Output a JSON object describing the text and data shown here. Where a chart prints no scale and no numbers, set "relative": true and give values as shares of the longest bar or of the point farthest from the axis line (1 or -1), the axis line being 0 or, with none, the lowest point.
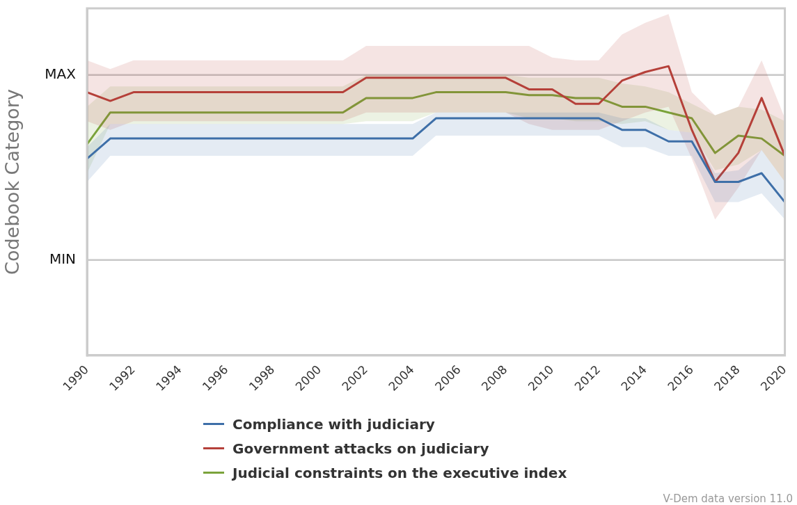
{
  "chart_data": {
    "type": "line",
    "ylabel": "Codebook Category",
    "relative": true,
    "x": [
      1990,
      1991,
      1992,
      1993,
      1994,
      1995,
      1996,
      1997,
      1998,
      1999,
      2000,
      2001,
      2002,
      2003,
      2004,
      2005,
      2006,
      2007,
      2008,
      2009,
      2010,
      2011,
      2012,
      2013,
      2014,
      2015,
      2016,
      2017,
      2018,
      2019,
      2020
    ],
    "series": [
      {
        "name": "Compliance with judiciary",
        "color": "#3e6fa8",
        "values": [
          0.68,
          0.75,
          0.75,
          0.75,
          0.75,
          0.75,
          0.75,
          0.75,
          0.75,
          0.75,
          0.75,
          0.75,
          0.75,
          0.75,
          0.75,
          0.82,
          0.82,
          0.82,
          0.82,
          0.82,
          0.82,
          0.82,
          0.82,
          0.78,
          0.78,
          0.74,
          0.74,
          0.6,
          0.6,
          0.63,
          0.53
        ],
        "lower": [
          0.6,
          0.69,
          0.69,
          0.69,
          0.69,
          0.69,
          0.69,
          0.69,
          0.69,
          0.69,
          0.69,
          0.69,
          0.69,
          0.69,
          0.69,
          0.76,
          0.76,
          0.76,
          0.76,
          0.76,
          0.76,
          0.76,
          0.76,
          0.72,
          0.72,
          0.69,
          0.69,
          0.53,
          0.53,
          0.56,
          0.47
        ],
        "upper": [
          0.72,
          0.8,
          0.8,
          0.8,
          0.8,
          0.8,
          0.8,
          0.8,
          0.8,
          0.8,
          0.8,
          0.8,
          0.8,
          0.8,
          0.8,
          0.84,
          0.84,
          0.84,
          0.84,
          0.84,
          0.84,
          0.84,
          0.84,
          0.82,
          0.82,
          0.78,
          0.77,
          0.63,
          0.64,
          0.71,
          0.6
        ]
      },
      {
        "name": "Government attacks on judiciary",
        "color": "#b5403a",
        "values": [
          0.91,
          0.88,
          0.91,
          0.91,
          0.91,
          0.91,
          0.91,
          0.91,
          0.91,
          0.91,
          0.91,
          0.91,
          0.96,
          0.96,
          0.96,
          0.96,
          0.96,
          0.96,
          0.96,
          0.92,
          0.92,
          0.87,
          0.87,
          0.95,
          0.98,
          1.0,
          0.78,
          0.6,
          0.7,
          0.89,
          0.69
        ],
        "lower": [
          0.81,
          0.78,
          0.81,
          0.81,
          0.81,
          0.81,
          0.81,
          0.81,
          0.81,
          0.81,
          0.81,
          0.81,
          0.84,
          0.84,
          0.84,
          0.84,
          0.84,
          0.84,
          0.84,
          0.8,
          0.78,
          0.78,
          0.78,
          0.81,
          0.84,
          0.86,
          0.68,
          0.47,
          0.58,
          0.71,
          0.6
        ],
        "upper": [
          1.02,
          0.99,
          1.02,
          1.02,
          1.02,
          1.02,
          1.02,
          1.02,
          1.02,
          1.02,
          1.02,
          1.02,
          1.07,
          1.07,
          1.07,
          1.07,
          1.07,
          1.07,
          1.07,
          1.07,
          1.03,
          1.02,
          1.02,
          1.11,
          1.15,
          1.18,
          0.91,
          0.83,
          0.86,
          1.02,
          0.82
        ]
      },
      {
        "name": "Judicial constraints on the executive index",
        "color": "#7ba33b",
        "values": [
          0.73,
          0.84,
          0.84,
          0.84,
          0.84,
          0.84,
          0.84,
          0.84,
          0.84,
          0.84,
          0.84,
          0.84,
          0.89,
          0.89,
          0.89,
          0.91,
          0.91,
          0.91,
          0.91,
          0.9,
          0.9,
          0.89,
          0.89,
          0.86,
          0.86,
          0.84,
          0.82,
          0.7,
          0.76,
          0.75,
          0.69
        ],
        "lower": [
          0.63,
          0.8,
          0.8,
          0.8,
          0.8,
          0.8,
          0.8,
          0.8,
          0.8,
          0.8,
          0.8,
          0.8,
          0.81,
          0.81,
          0.81,
          0.84,
          0.84,
          0.84,
          0.84,
          0.82,
          0.82,
          0.81,
          0.81,
          0.8,
          0.81,
          0.78,
          0.77,
          0.64,
          0.66,
          0.71,
          0.6
        ],
        "upper": [
          0.86,
          0.93,
          0.93,
          0.93,
          0.93,
          0.93,
          0.93,
          0.93,
          0.93,
          0.93,
          0.93,
          0.93,
          0.97,
          0.97,
          0.97,
          0.97,
          0.97,
          0.97,
          0.97,
          0.96,
          0.96,
          0.96,
          0.96,
          0.94,
          0.93,
          0.91,
          0.87,
          0.83,
          0.86,
          0.85,
          0.81
        ]
      }
    ],
    "xlim": [
      1990,
      2020
    ],
    "xticks": [
      1990,
      1992,
      1994,
      1996,
      1998,
      2000,
      2002,
      2004,
      2006,
      2008,
      2010,
      2012,
      2014,
      2016,
      2018,
      2020
    ],
    "ref_lines": [
      {
        "axis": "y",
        "value": 0.97,
        "label": "MAX",
        "color": "#c8c8c8"
      },
      {
        "axis": "y",
        "value": 0.33,
        "label": "MIN",
        "color": "#c8c8c8"
      }
    ],
    "legend": "bottom",
    "marker": "none",
    "line_style": "solid",
    "annotations": [
      "V-Dem data version 11.0"
    ]
  }
}
